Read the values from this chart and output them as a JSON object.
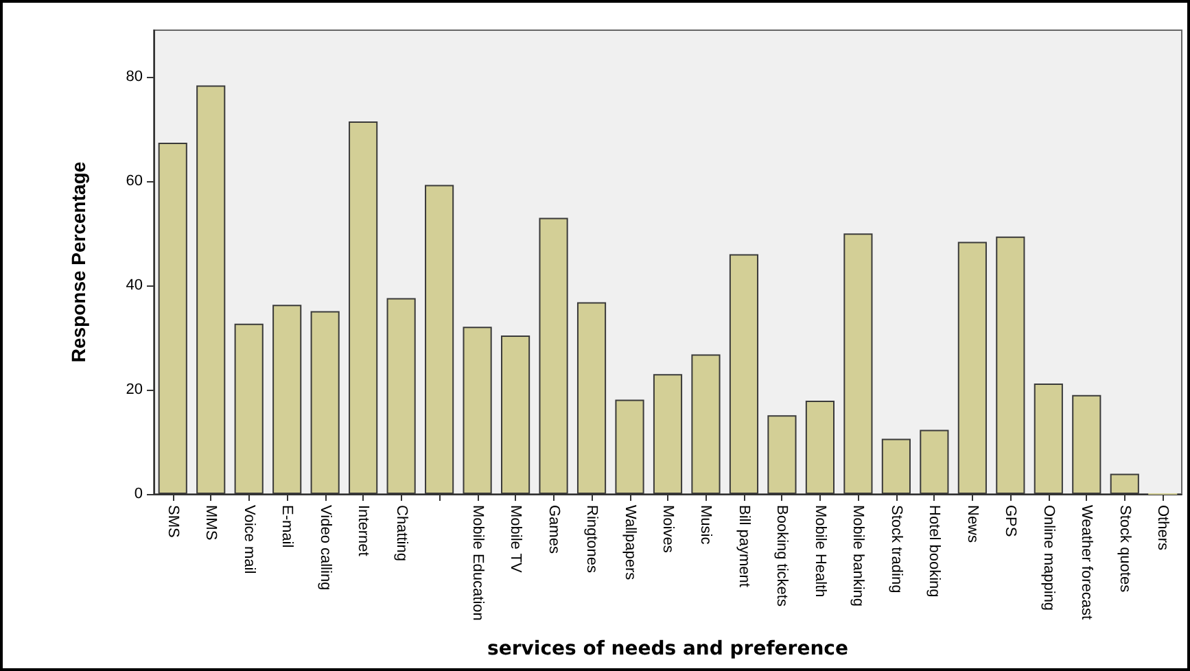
{
  "chart_data": {
    "type": "bar",
    "xlabel": "services of needs and preference",
    "ylabel": "Response Percentage",
    "categories": [
      "SMS",
      "MMS",
      "Voice mail",
      "E-mail",
      "Video calling",
      "Internet",
      "Chatting",
      null,
      "Mobile Education",
      "Mobile TV",
      "Games",
      "Ringtones",
      "Wallpapers",
      "Moives",
      "Music",
      "Bill payment",
      "Booking tickets",
      "Mobile Health",
      "Mobile banking",
      "Stock trading",
      "Hotel booking",
      "News",
      "GPS",
      "Online mapping",
      "Weather forecast",
      "Stock quotes",
      "Others"
    ],
    "values": [
      67.4,
      78.4,
      32.7,
      36.3,
      35.1,
      71.5,
      37.6,
      59.3,
      32.1,
      30.4,
      53.0,
      36.8,
      18.1,
      23.0,
      26.8,
      46.0,
      15.1,
      17.9,
      50.0,
      10.6,
      12.3,
      48.4,
      49.4,
      21.2,
      19.0,
      3.9,
      0
    ],
    "color": "#d3cf96",
    "ylim": [
      0,
      89
    ],
    "yticks": [
      0,
      20,
      40,
      60,
      80
    ],
    "grid": false
  }
}
